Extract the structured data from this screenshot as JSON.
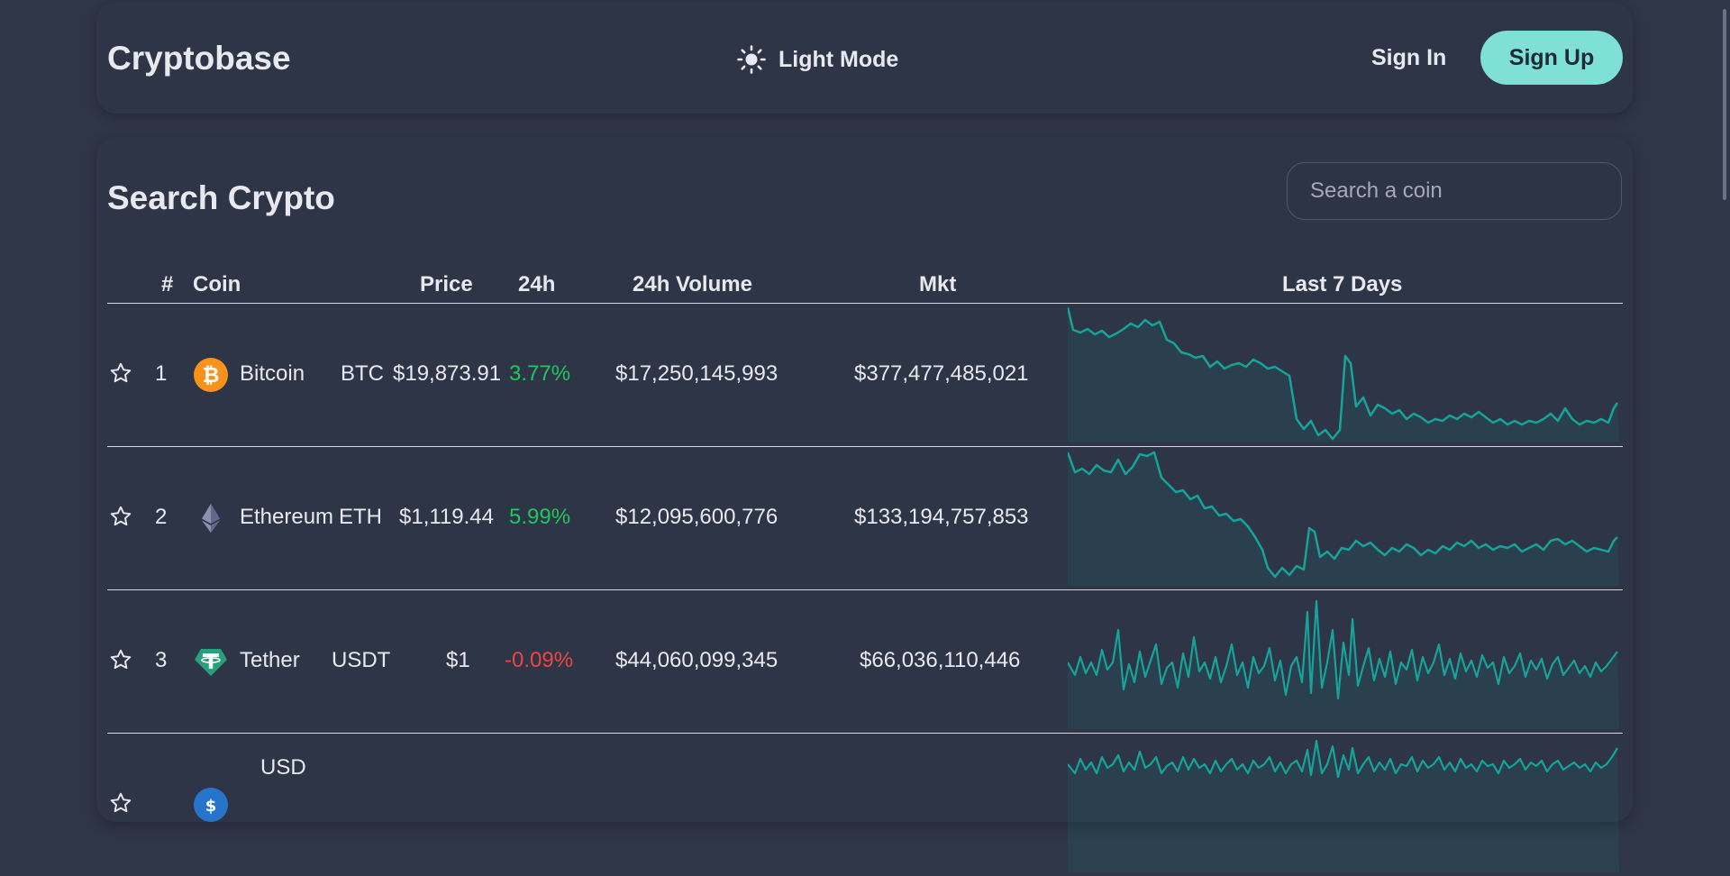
{
  "app": {
    "brand": "Cryptobase",
    "mode_label": "Light Mode",
    "sign_in": "Sign In",
    "sign_up": "Sign Up"
  },
  "search": {
    "title": "Search Crypto",
    "placeholder": "Search a coin"
  },
  "table": {
    "headers": {
      "rank": "#",
      "coin": "Coin",
      "price": "Price",
      "change": "24h",
      "volume": "24h Volume",
      "mkt": "Mkt",
      "last7": "Last 7 Days"
    },
    "rows": [
      {
        "rank": "1",
        "name": "Bitcoin",
        "symbol": "BTC",
        "price": "$19,873.91",
        "change": "3.77%",
        "volume": "$17,250,145,993",
        "mkt": "$377,477,485,021",
        "icon": "bitcoin-icon",
        "color": "#f7931a"
      },
      {
        "rank": "2",
        "name": "Ethereum",
        "symbol": "ETH",
        "price": "$1,119.44",
        "change": "5.99%",
        "volume": "$12,095,600,776",
        "mkt": "$133,194,757,853",
        "icon": "ethereum-icon",
        "color": "#8a92b2"
      },
      {
        "rank": "3",
        "name": "Tether",
        "symbol": "USDT",
        "price": "$1",
        "change": "-0.09%",
        "volume": "$44,060,099,345",
        "mkt": "$66,036,110,446",
        "icon": "tether-icon",
        "color": "#26a17b"
      },
      {
        "rank": "",
        "name": "USD",
        "symbol": "",
        "price": "",
        "change": "",
        "volume": "",
        "mkt": "",
        "icon": "usd-coin-icon",
        "color": "#2775ca"
      }
    ]
  },
  "colors": {
    "accent": "#7ee0d6",
    "positive": "#22c55e",
    "negative": "#ef4444",
    "sparkline": "#16a39a"
  }
}
